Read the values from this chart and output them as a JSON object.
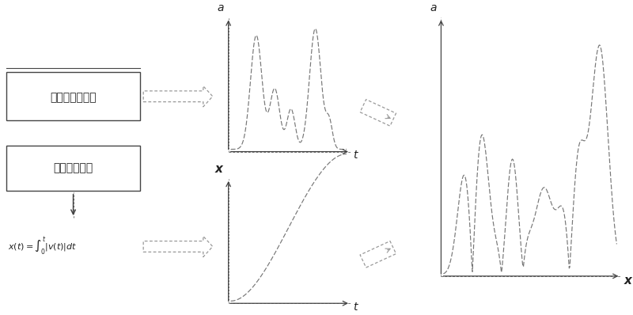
{
  "bg_color": "#ffffff",
  "box1_text": "垂直加速度数据",
  "box2_text": "行驶速度数据",
  "label_a": "a",
  "label_t_top": "t",
  "label_x_bottom": "x",
  "label_t_bottom": "t",
  "label_a_right": "a",
  "label_x_right": "x",
  "line_color": "#444444",
  "dot_color": "#777777",
  "arrow_color": "#999999",
  "font_color": "#222222"
}
